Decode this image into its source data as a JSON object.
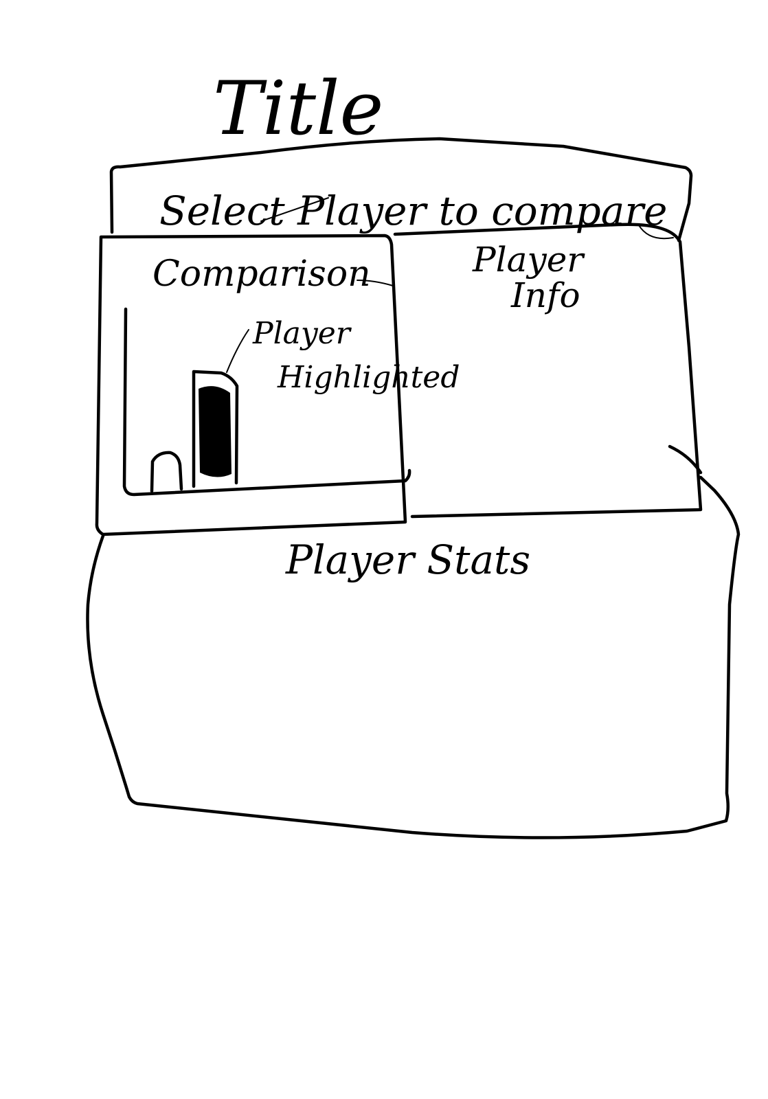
{
  "title": "Title",
  "selector": {
    "label": "Select Player to compare"
  },
  "comparison": {
    "label": "Comparison",
    "highlight_label": "Player Highlighted",
    "highlighted_bar_fill": "#000000"
  },
  "player_info": {
    "label_line1": "Player",
    "label_line2": "Info"
  },
  "player_stats": {
    "label": "Player Stats"
  },
  "colors": {
    "ink": "#000000",
    "paper": "#ffffff"
  }
}
